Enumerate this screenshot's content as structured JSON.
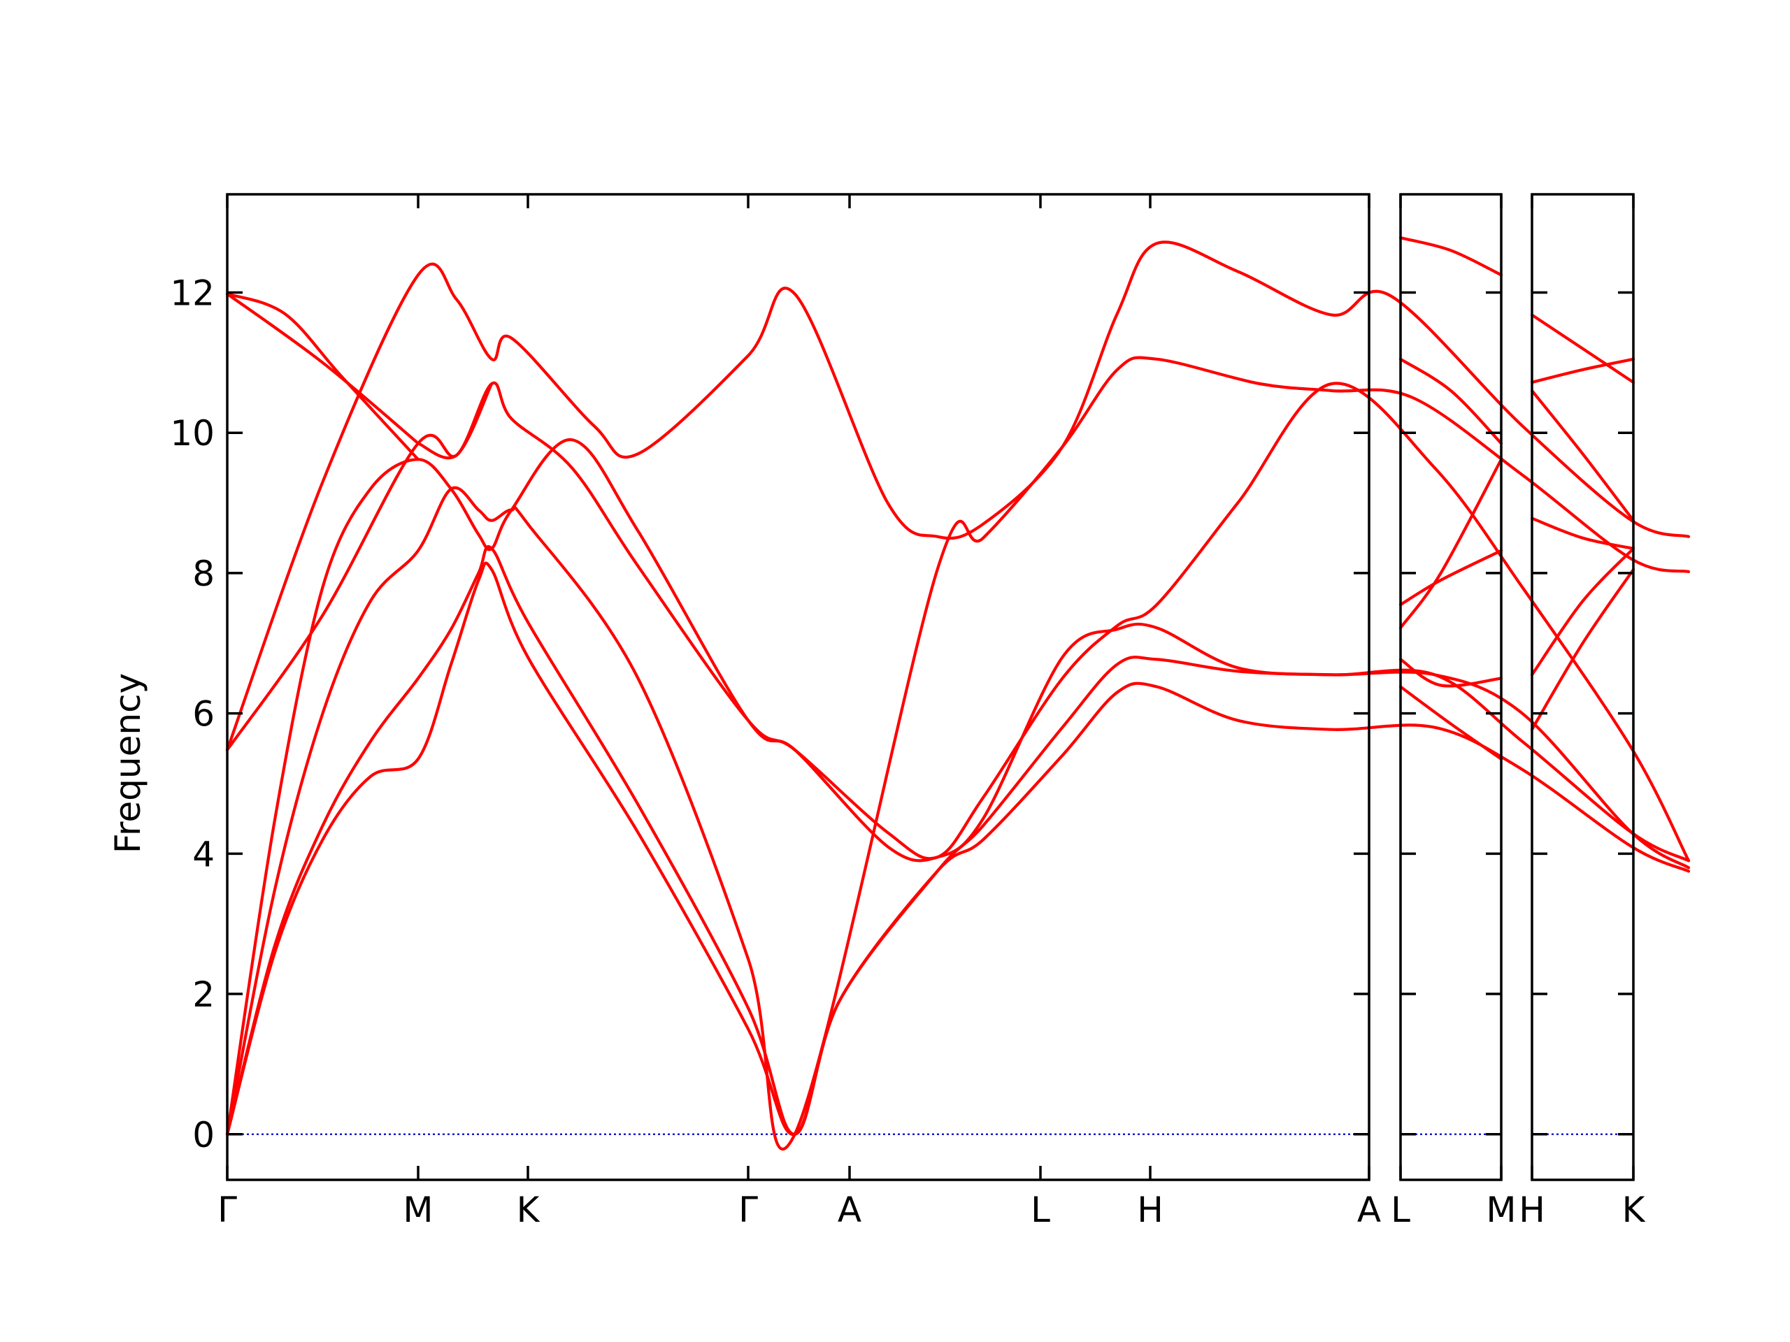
{
  "chart_data": {
    "type": "line",
    "ylabel": "Frequency",
    "ylim": [
      -0.65,
      13.4
    ],
    "yticks": [
      0,
      2,
      4,
      6,
      8,
      10,
      12
    ],
    "grid": false,
    "legend": "none",
    "line_color": "#ff0000",
    "zero_line_color": "#0000cc",
    "panels": [
      {
        "xlabels": [
          "Γ",
          "M",
          "K",
          "Γ",
          "A",
          "L",
          "H",
          "A"
        ],
        "series": [
          {
            "values": [
              [
                0,
                0
              ],
              [
                0.25,
                2.6
              ],
              [
                0.5,
                4.2
              ],
              [
                0.75,
                5.1
              ],
              [
                1,
                5.35
              ],
              [
                1.3,
                6.7
              ],
              [
                1.55,
                7.9
              ],
              [
                1.67,
                8.05
              ],
              [
                2,
                6.8
              ],
              [
                2.5,
                4.3
              ],
              [
                3,
                1.5
              ],
              [
                3.46,
                0
              ],
              [
                3.9,
                1.9
              ],
              [
                4.46,
                3.75
              ],
              [
                4.7,
                4.2
              ],
              [
                5.2,
                5.4
              ],
              [
                5.7,
                6.3
              ],
              [
                6.03,
                6.38
              ],
              [
                6.4,
                5.9
              ],
              [
                6.83,
                5.77
              ],
              [
                7.3,
                5.8
              ],
              [
                7.7,
                5.2
              ],
              [
                8.2,
                4.1
              ],
              [
                8.46,
                3.75
              ]
            ]
          },
          {
            "values": [
              [
                0,
                0
              ],
              [
                0.25,
                2.7
              ],
              [
                0.5,
                4.4
              ],
              [
                0.75,
                5.6
              ],
              [
                1,
                6.5
              ],
              [
                1.3,
                7.2
              ],
              [
                1.55,
                8.0
              ],
              [
                1.67,
                8.35
              ],
              [
                2,
                7.3
              ],
              [
                2.5,
                4.7
              ],
              [
                3,
                1.8
              ],
              [
                3.46,
                0
              ],
              [
                3.9,
                1.9
              ],
              [
                4.46,
                3.75
              ],
              [
                4.7,
                4.4
              ],
              [
                5.2,
                5.8
              ],
              [
                5.7,
                6.7
              ],
              [
                6.03,
                6.77
              ],
              [
                6.4,
                6.6
              ],
              [
                6.83,
                6.55
              ],
              [
                7.3,
                6.55
              ],
              [
                7.7,
                6.0
              ],
              [
                8.2,
                4.3
              ],
              [
                8.46,
                3.8
              ]
            ]
          },
          {
            "values": [
              [
                0,
                0
              ],
              [
                0.25,
                3.5
              ],
              [
                0.5,
                6.0
              ],
              [
                0.75,
                7.6
              ],
              [
                1,
                8.32
              ],
              [
                1.3,
                9.2
              ],
              [
                1.55,
                8.9
              ],
              [
                1.67,
                8.75
              ],
              [
                1.85,
                8.9
              ],
              [
                2,
                8.7
              ],
              [
                2.5,
                6.5
              ],
              [
                3,
                2.5
              ],
              [
                3.46,
                0
              ],
              [
                4.46,
                8.05
              ],
              [
                4.7,
                8.5
              ],
              [
                5.2,
                9.8
              ],
              [
                5.7,
                10.9
              ],
              [
                6.03,
                11.05
              ],
              [
                6.5,
                10.7
              ],
              [
                6.83,
                10.6
              ],
              [
                7.2,
                10.5
              ],
              [
                7.7,
                9.4
              ],
              [
                8.2,
                8.2
              ],
              [
                8.46,
                8.02
              ]
            ]
          },
          {
            "values": [
              [
                0,
                0
              ],
              [
                0.25,
                4.5
              ],
              [
                0.5,
                7.8
              ],
              [
                0.75,
                9.2
              ],
              [
                1,
                9.62
              ],
              [
                1.3,
                9.2
              ],
              [
                1.55,
                8.55
              ],
              [
                1.67,
                8.35
              ],
              [
                1.85,
                8.9
              ],
              [
                2.2,
                9.9
              ],
              [
                2.5,
                8.6
              ],
              [
                3,
                5.9
              ],
              [
                3.46,
                5.48
              ],
              [
                4.2,
                4.1
              ],
              [
                4.46,
                3.95
              ],
              [
                4.7,
                4.5
              ],
              [
                5.2,
                6.8
              ],
              [
                5.7,
                7.2
              ],
              [
                6.03,
                7.22
              ],
              [
                6.4,
                6.65
              ],
              [
                6.83,
                6.55
              ],
              [
                7.3,
                6.55
              ],
              [
                7.7,
                5.6
              ],
              [
                8.2,
                4.3
              ],
              [
                8.46,
                3.9
              ]
            ]
          },
          {
            "values": [
              [
                0,
                5.48
              ],
              [
                0.5,
                7.4
              ],
              [
                1,
                9.85
              ],
              [
                1.35,
                9.68
              ],
              [
                1.67,
                10.7
              ],
              [
                1.85,
                10.2
              ],
              [
                2.2,
                9.5
              ],
              [
                2.5,
                8.1
              ],
              [
                3,
                5.9
              ],
              [
                3.46,
                5.48
              ],
              [
                4.2,
                4.3
              ],
              [
                4.46,
                3.95
              ],
              [
                4.7,
                4.8
              ],
              [
                5.2,
                6.5
              ],
              [
                5.7,
                7.25
              ],
              [
                6.03,
                7.55
              ],
              [
                6.4,
                9.0
              ],
              [
                6.83,
                10.7
              ],
              [
                7.3,
                9.5
              ],
              [
                7.7,
                7.8
              ],
              [
                8.2,
                5.5
              ],
              [
                8.46,
                3.9
              ]
            ]
          },
          {
            "values": [
              [
                0,
                5.48
              ],
              [
                0.5,
                9.3
              ],
              [
                1,
                12.25
              ],
              [
                1.35,
                11.9
              ],
              [
                1.67,
                11.05
              ],
              [
                1.85,
                11.35
              ],
              [
                2.3,
                10.1
              ],
              [
                2.5,
                9.7
              ],
              [
                3,
                11.1
              ],
              [
                3.46,
                11.98
              ],
              [
                4.2,
                9.0
              ],
              [
                4.46,
                8.52
              ],
              [
                4.7,
                8.7
              ],
              [
                5.2,
                9.8
              ],
              [
                5.7,
                11.7
              ],
              [
                6.03,
                12.7
              ],
              [
                6.4,
                12.3
              ],
              [
                6.83,
                11.68
              ],
              [
                7.1,
                11.95
              ],
              [
                7.7,
                10.1
              ],
              [
                8.2,
                8.75
              ],
              [
                8.46,
                8.52
              ]
            ]
          },
          {
            "values": [
              [
                0,
                11.98
              ],
              [
                0.5,
                11.0
              ],
              [
                1,
                9.85
              ]
            ]
          },
          {
            "values": [
              [
                1,
                9.85
              ],
              [
                1.35,
                9.68
              ],
              [
                1.67,
                10.7
              ]
            ]
          },
          {
            "values": [
              [
                0,
                11.98
              ],
              [
                0.3,
                11.7
              ],
              [
                0.6,
                10.8
              ],
              [
                1,
                9.62
              ]
            ]
          }
        ]
      },
      {
        "xlabels": [
          "L",
          "M"
        ],
        "series": [
          {
            "values": [
              [
                0,
                6.38
              ],
              [
                0.5,
                5.85
              ],
              [
                1,
                5.35
              ]
            ]
          },
          {
            "values": [
              [
                0,
                6.77
              ],
              [
                0.4,
                6.4
              ],
              [
                1,
                6.5
              ]
            ]
          },
          {
            "values": [
              [
                0,
                7.22
              ],
              [
                0.4,
                8.0
              ],
              [
                1,
                9.62
              ]
            ]
          },
          {
            "values": [
              [
                0,
                7.55
              ],
              [
                0.4,
                7.9
              ],
              [
                1,
                8.32
              ]
            ]
          },
          {
            "values": [
              [
                0,
                11.05
              ],
              [
                0.5,
                10.6
              ],
              [
                1,
                9.85
              ]
            ]
          },
          {
            "values": [
              [
                0,
                12.78
              ],
              [
                0.5,
                12.6
              ],
              [
                1,
                12.25
              ]
            ]
          }
        ]
      },
      {
        "xlabels": [
          "H",
          "K"
        ],
        "series": [
          {
            "values": [
              [
                0,
                5.77
              ],
              [
                0.5,
                7.0
              ],
              [
                1,
                8.05
              ]
            ]
          },
          {
            "values": [
              [
                0,
                6.55
              ],
              [
                0.5,
                7.6
              ],
              [
                1,
                8.35
              ]
            ]
          },
          {
            "values": [
              [
                0,
                8.78
              ],
              [
                0.5,
                8.5
              ],
              [
                1,
                8.35
              ]
            ]
          },
          {
            "values": [
              [
                0,
                10.6
              ],
              [
                0.5,
                9.7
              ],
              [
                1,
                8.75
              ]
            ]
          },
          {
            "values": [
              [
                0,
                10.72
              ],
              [
                0.5,
                10.9
              ],
              [
                1,
                11.05
              ]
            ]
          },
          {
            "values": [
              [
                0,
                11.68
              ],
              [
                0.5,
                11.2
              ],
              [
                1,
                10.72
              ]
            ]
          }
        ]
      }
    ]
  }
}
